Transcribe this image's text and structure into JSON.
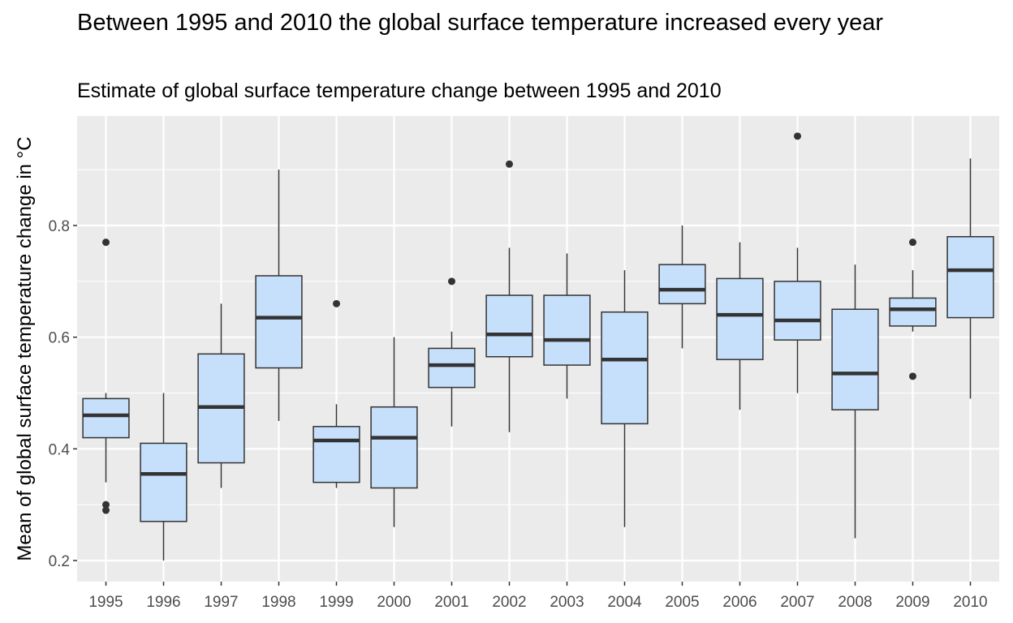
{
  "title": "Between 1995 and 2010 the global surface temperature increased every year",
  "subtitle": "Estimate of global surface temperature change between 1995 and 2010",
  "chart_data": {
    "type": "boxplot",
    "title": "Between 1995 and 2010 the global surface temperature increased every year",
    "subtitle": "Estimate of global surface temperature change between 1995 and 2010",
    "xlabel": "",
    "ylabel": "Mean of global surface temperature change in °C",
    "ylim": [
      0.17,
      1.0
    ],
    "yticks": [
      0.2,
      0.4,
      0.6,
      0.8
    ],
    "ytick_labels": [
      "0.2",
      "0.4",
      "0.6",
      "0.8"
    ],
    "categories": [
      "1995",
      "1996",
      "1997",
      "1998",
      "1999",
      "2000",
      "2001",
      "2002",
      "2003",
      "2004",
      "2005",
      "2006",
      "2007",
      "2008",
      "2009",
      "2010"
    ],
    "box_color": "#c6e0fc",
    "line_color": "#333333",
    "panel_color": "#ebebeb",
    "grid": true,
    "boxes": [
      {
        "year": "1995",
        "lower_whisker": 0.34,
        "q1": 0.42,
        "median": 0.46,
        "q3": 0.49,
        "upper_whisker": 0.5,
        "outliers": [
          0.77,
          0.3,
          0.29
        ]
      },
      {
        "year": "1996",
        "lower_whisker": 0.2,
        "q1": 0.27,
        "median": 0.355,
        "q3": 0.41,
        "upper_whisker": 0.5,
        "outliers": []
      },
      {
        "year": "1997",
        "lower_whisker": 0.33,
        "q1": 0.375,
        "median": 0.475,
        "q3": 0.57,
        "upper_whisker": 0.66,
        "outliers": []
      },
      {
        "year": "1998",
        "lower_whisker": 0.45,
        "q1": 0.545,
        "median": 0.635,
        "q3": 0.71,
        "upper_whisker": 0.9,
        "outliers": []
      },
      {
        "year": "1999",
        "lower_whisker": 0.33,
        "q1": 0.34,
        "median": 0.415,
        "q3": 0.44,
        "upper_whisker": 0.48,
        "outliers": [
          0.66
        ]
      },
      {
        "year": "2000",
        "lower_whisker": 0.26,
        "q1": 0.33,
        "median": 0.42,
        "q3": 0.475,
        "upper_whisker": 0.6,
        "outliers": []
      },
      {
        "year": "2001",
        "lower_whisker": 0.44,
        "q1": 0.51,
        "median": 0.55,
        "q3": 0.58,
        "upper_whisker": 0.61,
        "outliers": [
          0.7
        ]
      },
      {
        "year": "2002",
        "lower_whisker": 0.43,
        "q1": 0.565,
        "median": 0.605,
        "q3": 0.675,
        "upper_whisker": 0.76,
        "outliers": [
          0.91
        ]
      },
      {
        "year": "2003",
        "lower_whisker": 0.49,
        "q1": 0.55,
        "median": 0.595,
        "q3": 0.675,
        "upper_whisker": 0.75,
        "outliers": []
      },
      {
        "year": "2004",
        "lower_whisker": 0.26,
        "q1": 0.445,
        "median": 0.56,
        "q3": 0.645,
        "upper_whisker": 0.72,
        "outliers": []
      },
      {
        "year": "2005",
        "lower_whisker": 0.58,
        "q1": 0.66,
        "median": 0.685,
        "q3": 0.73,
        "upper_whisker": 0.8,
        "outliers": []
      },
      {
        "year": "2006",
        "lower_whisker": 0.47,
        "q1": 0.56,
        "median": 0.64,
        "q3": 0.705,
        "upper_whisker": 0.77,
        "outliers": []
      },
      {
        "year": "2007",
        "lower_whisker": 0.5,
        "q1": 0.595,
        "median": 0.63,
        "q3": 0.7,
        "upper_whisker": 0.76,
        "outliers": [
          0.96
        ]
      },
      {
        "year": "2008",
        "lower_whisker": 0.24,
        "q1": 0.47,
        "median": 0.535,
        "q3": 0.65,
        "upper_whisker": 0.73,
        "outliers": []
      },
      {
        "year": "2009",
        "lower_whisker": 0.61,
        "q1": 0.62,
        "median": 0.65,
        "q3": 0.67,
        "upper_whisker": 0.72,
        "outliers": [
          0.77,
          0.53
        ]
      },
      {
        "year": "2010",
        "lower_whisker": 0.49,
        "q1": 0.635,
        "median": 0.72,
        "q3": 0.78,
        "upper_whisker": 0.92,
        "outliers": []
      }
    ]
  }
}
